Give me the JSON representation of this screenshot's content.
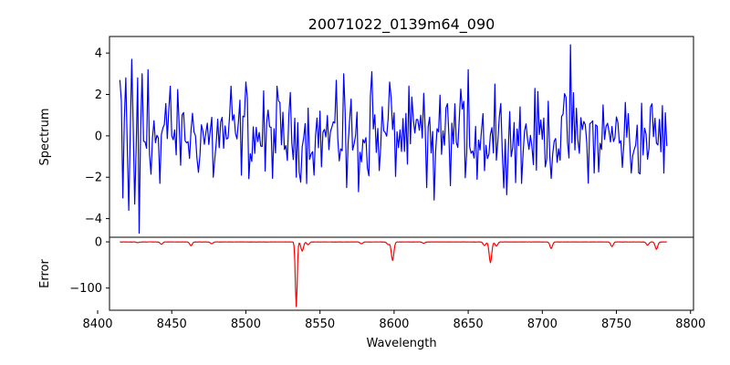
{
  "chart_data": [
    {
      "type": "line",
      "title": "20071022_0139m64_090",
      "xlabel": "",
      "ylabel": "Spectrum",
      "xlim": [
        8408,
        8802
      ],
      "ylim": [
        -4.9,
        4.8
      ],
      "yticks": [
        -4,
        -2,
        0,
        2,
        4
      ],
      "series": [
        {
          "name": "spectrum",
          "color": "#0000ff",
          "x_start": 8415,
          "x_end": 8784,
          "spikes": [
            {
              "x": 8415,
              "v": 2.7
            },
            {
              "x": 8417,
              "v": -3.0
            },
            {
              "x": 8419,
              "v": 2.8
            },
            {
              "x": 8421,
              "v": -3.6
            },
            {
              "x": 8423,
              "v": 3.7
            },
            {
              "x": 8425,
              "v": -3.3
            },
            {
              "x": 8427,
              "v": 2.8
            },
            {
              "x": 8428,
              "v": -4.7
            },
            {
              "x": 8430,
              "v": 3.0
            },
            {
              "x": 8434,
              "v": 3.2
            },
            {
              "x": 8442,
              "v": -2.3
            },
            {
              "x": 8449,
              "v": 2.4
            },
            {
              "x": 8478,
              "v": -2.0
            },
            {
              "x": 8490,
              "v": 2.4
            },
            {
              "x": 8500,
              "v": 2.6
            },
            {
              "x": 8513,
              "v": -1.7
            },
            {
              "x": 8521,
              "v": 2.4
            },
            {
              "x": 8566,
              "v": 3.0
            },
            {
              "x": 8568,
              "v": -2.5
            },
            {
              "x": 8576,
              "v": -2.7
            },
            {
              "x": 8585,
              "v": 3.1
            },
            {
              "x": 8597,
              "v": 2.6
            },
            {
              "x": 8622,
              "v": -2.5
            },
            {
              "x": 8627,
              "v": -3.1
            },
            {
              "x": 8650,
              "v": 3.2
            },
            {
              "x": 8656,
              "v": -2.1
            },
            {
              "x": 8668,
              "v": 2.5
            },
            {
              "x": 8686,
              "v": -2.3
            },
            {
              "x": 8719,
              "v": 4.4
            },
            {
              "x": 8735,
              "v": -1.8
            },
            {
              "x": 8760,
              "v": -1.8
            },
            {
              "x": 8782,
              "v": -1.8
            }
          ]
        }
      ]
    },
    {
      "type": "line",
      "title": "",
      "xlabel": "Wavelength",
      "ylabel": "Error",
      "xlim": [
        8408,
        8802
      ],
      "ylim": [
        -148,
        10
      ],
      "yticks": [
        0,
        -100
      ],
      "xticks": [
        8400,
        8450,
        8500,
        8550,
        8600,
        8650,
        8700,
        8750,
        8800
      ],
      "series": [
        {
          "name": "error",
          "color": "#ff0000",
          "x_start": 8415,
          "x_end": 8784,
          "dips": [
            {
              "x": 8427,
              "v": -1.5
            },
            {
              "x": 8443,
              "v": -5
            },
            {
              "x": 8463,
              "v": -8
            },
            {
              "x": 8477,
              "v": -4
            },
            {
              "x": 8534,
              "v": -140
            },
            {
              "x": 8538,
              "v": -20
            },
            {
              "x": 8542,
              "v": -6
            },
            {
              "x": 8578,
              "v": -4
            },
            {
              "x": 8596,
              "v": -6
            },
            {
              "x": 8599,
              "v": -40
            },
            {
              "x": 8620,
              "v": -3
            },
            {
              "x": 8661,
              "v": -8
            },
            {
              "x": 8665,
              "v": -45
            },
            {
              "x": 8669,
              "v": -9
            },
            {
              "x": 8706,
              "v": -14
            },
            {
              "x": 8747,
              "v": -10
            },
            {
              "x": 8771,
              "v": -7
            },
            {
              "x": 8777,
              "v": -16
            }
          ]
        }
      ]
    }
  ]
}
